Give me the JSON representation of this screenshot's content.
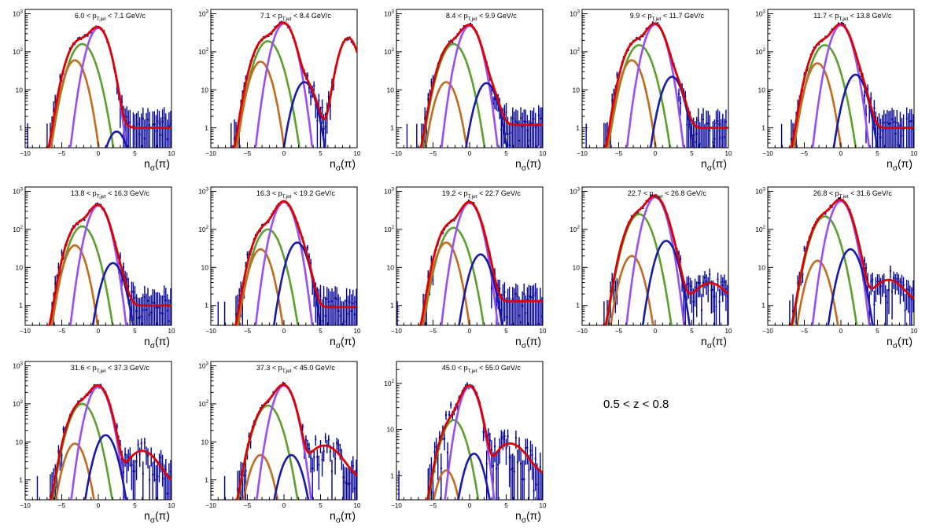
{
  "figure": {
    "selection_label": "0.5 < z < 0.8",
    "x_axis_title": "n_σ(π)"
  },
  "chart_data": [
    {
      "type": "line",
      "title": "6.0 < p_T,jet < 7.1 GeV/c",
      "xlim": [
        -10,
        10
      ],
      "ylim": [
        0.3,
        1300
      ],
      "yscale": "log",
      "xticks": [
        -10,
        -5,
        0,
        5,
        10
      ],
      "yticks": [
        1,
        10,
        100,
        1000
      ],
      "ytick_labels": [
        "1",
        "10",
        "10²",
        "10³"
      ],
      "components": {
        "pi_amp": 420,
        "e_amp": 160,
        "k_amp": 60,
        "p_amp": 0.8,
        "p_mu": 2.5,
        "total_tail": 1.0,
        "extra": null
      }
    },
    {
      "type": "line",
      "title": "7.1 < p_T,jet < 8.4 GeV/c",
      "xlim": [
        -10,
        10
      ],
      "ylim": [
        0.3,
        1300
      ],
      "yscale": "log",
      "xticks": [
        -10,
        -5,
        0,
        5,
        10
      ],
      "yticks": [
        1,
        10,
        100,
        1000
      ],
      "ytick_labels": [
        "1",
        "10",
        "10²",
        "10³"
      ],
      "components": {
        "pi_amp": 550,
        "e_amp": 190,
        "k_amp": 55,
        "p_amp": 16,
        "p_mu": 2.8,
        "total_tail": 1.0,
        "extra": {
          "mu": 8.8,
          "amp": 230,
          "sigma": 0.9
        }
      }
    },
    {
      "type": "line",
      "title": "8.4 < p_T,jet < 9.9 GeV/c",
      "xlim": [
        -10,
        10
      ],
      "ylim": [
        0.3,
        1300
      ],
      "yscale": "log",
      "xticks": [
        -10,
        -5,
        0,
        5,
        10
      ],
      "yticks": [
        1,
        10,
        100,
        1000
      ],
      "ytick_labels": [
        "1",
        "10",
        "10²",
        "10³"
      ],
      "components": {
        "pi_amp": 480,
        "e_amp": 160,
        "k_amp": 16,
        "p_amp": 15,
        "p_mu": 2.3,
        "total_tail": 1.2,
        "extra": null
      }
    },
    {
      "type": "line",
      "title": "9.9 < p_T,jet < 11.7 GeV/c",
      "xlim": [
        -10,
        10
      ],
      "ylim": [
        0.3,
        1300
      ],
      "yscale": "log",
      "xticks": [
        -10,
        -5,
        0,
        5,
        10
      ],
      "yticks": [
        1,
        10,
        100,
        1000
      ],
      "ytick_labels": [
        "1",
        "10",
        "10²",
        "10³"
      ],
      "components": {
        "pi_amp": 520,
        "e_amp": 150,
        "k_amp": 60,
        "p_amp": 22,
        "p_mu": 2.3,
        "total_tail": 1.0,
        "extra": null
      }
    },
    {
      "type": "line",
      "title": "11.7 < p_T,jet < 13.8 GeV/c",
      "xlim": [
        -10,
        10
      ],
      "ylim": [
        0.3,
        1300
      ],
      "yscale": "log",
      "xticks": [
        -10,
        -5,
        0,
        5,
        10
      ],
      "yticks": [
        1,
        10,
        100,
        1000
      ],
      "ytick_labels": [
        "1",
        "10",
        "10²",
        "10³"
      ],
      "components": {
        "pi_amp": 500,
        "e_amp": 150,
        "k_amp": 50,
        "p_amp": 25,
        "p_mu": 2.0,
        "total_tail": 1.0,
        "extra": null
      }
    },
    {
      "type": "line",
      "title": "13.8 < p_T,jet < 16.3 GeV/c",
      "xlim": [
        -10,
        10
      ],
      "ylim": [
        0.3,
        1300
      ],
      "yscale": "log",
      "xticks": [
        -10,
        -5,
        0,
        5,
        10
      ],
      "yticks": [
        1,
        10,
        100,
        1000
      ],
      "ytick_labels": [
        "1",
        "10",
        "10²",
        "10³"
      ],
      "components": {
        "pi_amp": 420,
        "e_amp": 120,
        "k_amp": 38,
        "p_amp": 13,
        "p_mu": 2.0,
        "total_tail": 1.0,
        "extra": null
      }
    },
    {
      "type": "line",
      "title": "16.3 < p_T,jet < 19.2 GeV/c",
      "xlim": [
        -10,
        10
      ],
      "ylim": [
        0.3,
        1300
      ],
      "yscale": "log",
      "xticks": [
        -10,
        -5,
        0,
        5,
        10
      ],
      "yticks": [
        1,
        10,
        100,
        1000
      ],
      "ytick_labels": [
        "1",
        "10",
        "10²",
        "10³"
      ],
      "components": {
        "pi_amp": 520,
        "e_amp": 100,
        "k_amp": 30,
        "p_amp": 45,
        "p_mu": 1.8,
        "total_tail": 0.9,
        "extra": null
      }
    },
    {
      "type": "line",
      "title": "19.2 < p_T,jet < 22.7 GeV/c",
      "xlim": [
        -10,
        10
      ],
      "ylim": [
        0.3,
        1300
      ],
      "yscale": "log",
      "xticks": [
        -10,
        -5,
        0,
        5,
        10
      ],
      "yticks": [
        1,
        10,
        100,
        1000
      ],
      "ytick_labels": [
        "1",
        "10",
        "10²",
        "10³"
      ],
      "components": {
        "pi_amp": 500,
        "e_amp": 110,
        "k_amp": 45,
        "p_amp": 22,
        "p_mu": 1.5,
        "total_tail": 1.3,
        "extra": null
      }
    },
    {
      "type": "line",
      "title": "22.7 < p_T,jet < 26.8 GeV/c",
      "xlim": [
        -10,
        10
      ],
      "ylim": [
        0.3,
        1300
      ],
      "yscale": "log",
      "xticks": [
        -10,
        -5,
        0,
        5,
        10
      ],
      "yticks": [
        1,
        10,
        100,
        1000
      ],
      "ytick_labels": [
        "1",
        "10",
        "10²",
        "10³"
      ],
      "components": {
        "pi_amp": 700,
        "e_amp": 250,
        "k_amp": 20,
        "p_amp": 50,
        "p_mu": 1.5,
        "total_tail": 1.4,
        "extra": {
          "mu": 7.5,
          "amp": 2.5,
          "sigma": 1.5
        }
      }
    },
    {
      "type": "line",
      "title": "26.8 < p_T,jet < 31.6 GeV/c",
      "xlim": [
        -10,
        10
      ],
      "ylim": [
        0.3,
        1300
      ],
      "yscale": "log",
      "xticks": [
        -10,
        -5,
        0,
        5,
        10
      ],
      "yticks": [
        1,
        10,
        100,
        1000
      ],
      "ytick_labels": [
        "1",
        "10",
        "10²",
        "10³"
      ],
      "components": {
        "pi_amp": 550,
        "e_amp": 220,
        "k_amp": 15,
        "p_amp": 30,
        "p_mu": 1.3,
        "total_tail": 1.2,
        "extra": {
          "mu": 6.5,
          "amp": 3.5,
          "sigma": 1.6
        }
      }
    },
    {
      "type": "line",
      "title": "31.6 < p_T,jet < 37.3 GeV/c",
      "xlim": [
        -10,
        10
      ],
      "ylim": [
        0.3,
        1300
      ],
      "yscale": "log",
      "xticks": [
        -10,
        -5,
        0,
        5,
        10
      ],
      "yticks": [
        1,
        10,
        100,
        1000
      ],
      "ytick_labels": [
        "1",
        "10",
        "10²",
        "10³"
      ],
      "components": {
        "pi_amp": 280,
        "e_amp": 100,
        "k_amp": 9,
        "p_amp": 15,
        "p_mu": 1.0,
        "total_tail": 0.8,
        "extra": {
          "mu": 6.0,
          "amp": 5.0,
          "sigma": 1.6
        }
      }
    },
    {
      "type": "line",
      "title": "37.3 < p_T,jet < 45.0 GeV/c",
      "xlim": [
        -10,
        10
      ],
      "ylim": [
        0.3,
        1300
      ],
      "yscale": "log",
      "xticks": [
        -10,
        -5,
        0,
        5,
        10
      ],
      "yticks": [
        1,
        10,
        100,
        1000
      ],
      "ytick_labels": [
        "1",
        "10",
        "10²",
        "10³"
      ],
      "components": {
        "pi_amp": 300,
        "e_amp": 90,
        "k_amp": 4.5,
        "p_amp": 4.5,
        "p_mu": 1.0,
        "total_tail": 1.0,
        "extra": {
          "mu": 5.5,
          "amp": 7.0,
          "sigma": 1.8
        }
      }
    },
    {
      "type": "line",
      "title": "45.0 < p_T,jet < 55.0 GeV/c",
      "xlim": [
        -10,
        10
      ],
      "ylim": [
        0.3,
        300
      ],
      "yscale": "log",
      "xticks": [
        -10,
        -5,
        0,
        5,
        10
      ],
      "yticks": [
        1,
        10,
        100
      ],
      "ytick_labels": [
        "1",
        "10",
        "10²"
      ],
      "components": {
        "pi_amp": 85,
        "e_amp": 16,
        "k_amp": 1.3,
        "p_amp": 3.0,
        "p_mu": 0.6,
        "total_tail": 1.0,
        "extra": {
          "mu": 5.5,
          "amp": 4.0,
          "sigma": 1.8
        }
      }
    }
  ],
  "colors": {
    "data": "#000099",
    "total_fit": "#dd0000",
    "pion": "#9a4ff0",
    "electron": "#5aa02c",
    "kaon": "#c26a1e",
    "proton": "#1a1aaa"
  }
}
